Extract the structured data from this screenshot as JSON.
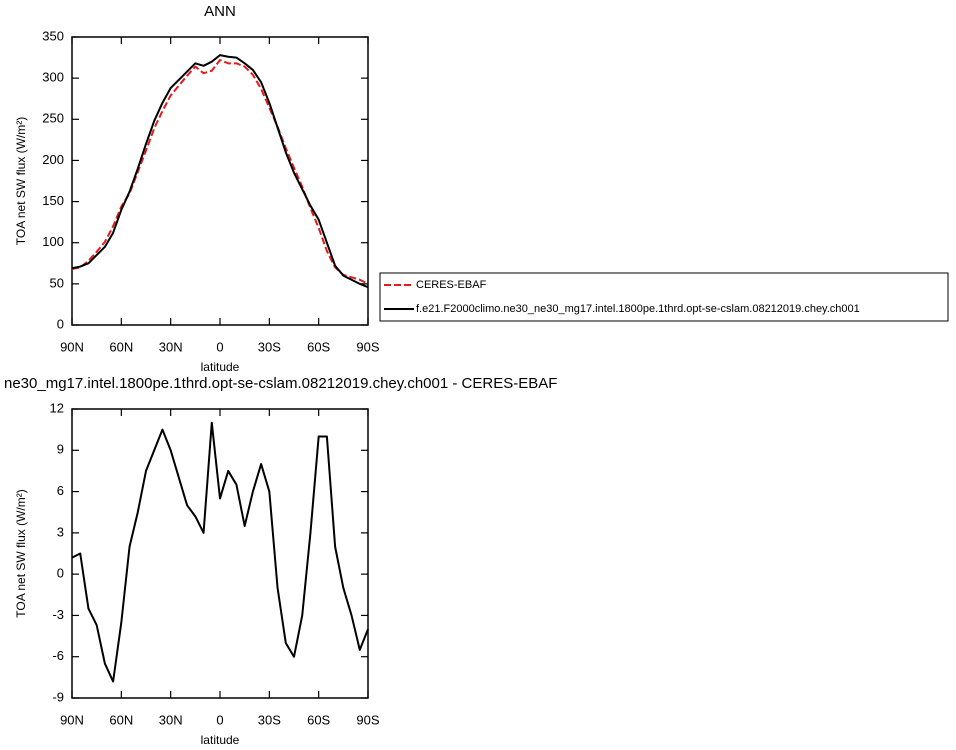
{
  "chart_data": [
    {
      "type": "line",
      "title": "ANN",
      "xlabel": "latitude",
      "ylabel": "TOA net SW flux (W/m²)",
      "x": [
        90,
        85,
        80,
        75,
        70,
        65,
        60,
        55,
        50,
        45,
        40,
        35,
        30,
        25,
        20,
        15,
        10,
        5,
        0,
        -5,
        -10,
        -15,
        -20,
        -25,
        -30,
        -35,
        -40,
        -45,
        -50,
        -55,
        -60,
        -65,
        -70,
        -75,
        -80,
        -85,
        -90
      ],
      "series": [
        {
          "name": "CERES-EBAF",
          "color": "#e41a1c",
          "dash": true,
          "values": [
            68,
            70,
            78,
            89,
            101,
            120,
            144,
            160,
            186,
            212,
            239,
            260,
            279,
            291,
            303,
            314,
            306,
            309,
            322,
            318,
            318,
            314,
            304,
            287,
            264,
            241,
            215,
            191,
            168,
            142,
            118,
            90,
            70,
            61,
            58,
            55,
            50
          ]
        },
        {
          "name": "f.e21.F2000climo.ne30_ne30_mg17.intel.1800pe.1thrd.opt-se-cslam.08212019.chey.ch001",
          "color": "#000000",
          "dash": false,
          "values": [
            69,
            71,
            75,
            85,
            95,
            112,
            140,
            162,
            190,
            220,
            248,
            270,
            288,
            298,
            308,
            318,
            315,
            320,
            328,
            326,
            325,
            318,
            310,
            295,
            270,
            240,
            210,
            185,
            165,
            145,
            128,
            100,
            72,
            60,
            55,
            50,
            46
          ]
        }
      ],
      "xlim": [
        90,
        -90
      ],
      "xticks": [
        {
          "value": 90,
          "label": "90N"
        },
        {
          "value": 60,
          "label": "60N"
        },
        {
          "value": 30,
          "label": "30N"
        },
        0,
        {
          "value": -30,
          "label": "30S"
        },
        {
          "value": -60,
          "label": "60S"
        },
        {
          "value": -90,
          "label": "90S"
        }
      ],
      "ylim": [
        0,
        350
      ],
      "yticks": [
        0,
        50,
        100,
        150,
        200,
        250,
        300,
        350
      ],
      "legend_position": "right"
    },
    {
      "type": "line",
      "title": "ne30_mg17.intel.1800pe.1thrd.opt-se-cslam.08212019.chey.ch001 - CERES-EBAF",
      "xlabel": "latitude",
      "ylabel": "TOA net SW flux (W/m²)",
      "x": [
        90,
        85,
        80,
        75,
        70,
        65,
        60,
        55,
        50,
        45,
        40,
        35,
        30,
        25,
        20,
        15,
        10,
        5,
        0,
        -5,
        -10,
        -15,
        -20,
        -25,
        -30,
        -35,
        -40,
        -45,
        -50,
        -55,
        -60,
        -65,
        -70,
        -75,
        -80,
        -85,
        -90
      ],
      "values": [
        1.2,
        1.5,
        -2.5,
        -3.7,
        -6.5,
        -7.8,
        -3.5,
        2,
        4.5,
        7.5,
        9,
        10.5,
        9,
        7,
        5,
        4.2,
        3,
        11,
        5.5,
        7.5,
        6.5,
        3.5,
        6,
        8,
        6,
        -1,
        -5,
        -6,
        -3,
        3,
        10,
        10,
        2,
        -1,
        -3,
        -5.5,
        -4
      ],
      "color": "#000000",
      "xlim": [
        90,
        -90
      ],
      "xticks": [
        {
          "value": 90,
          "label": "90N"
        },
        {
          "value": 60,
          "label": "60N"
        },
        {
          "value": 30,
          "label": "30N"
        },
        0,
        {
          "value": -30,
          "label": "30S"
        },
        {
          "value": -60,
          "label": "60S"
        },
        {
          "value": -90,
          "label": "90S"
        }
      ],
      "ylim": [
        -9,
        12
      ],
      "yticks": [
        -9,
        -6,
        -3,
        0,
        3,
        6,
        9,
        12
      ]
    }
  ]
}
